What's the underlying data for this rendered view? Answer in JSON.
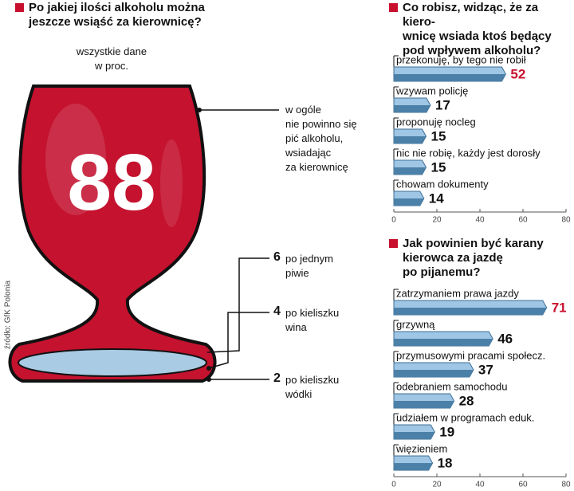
{
  "chart_data": [
    {
      "type": "glass",
      "title": "Po jakiej ilości alkoholu można\njeszcze wsiąść za kierownicę?",
      "subtitle": "wszystkie dane\nw proc.",
      "categories": [
        "w ogóle\nnie powinno się\npić alkoholu,\nwsiadając\nza kierownicę",
        "po jednym\npiwie",
        "po kieliszku\nwina",
        "po kieliszku\nwódki"
      ],
      "values": [
        88,
        6,
        4,
        2
      ],
      "color": "#c4122f",
      "source": "źródło: GfK Polonia"
    },
    {
      "type": "bar",
      "orientation": "horizontal",
      "title": "Co robisz, widząc, że za kiero-\nwnicę wsiada ktoś będący\npod wpływem alkoholu?",
      "categories": [
        "przekonuję, by tego nie robił",
        "wzywam policję",
        "proponuję nocleg",
        "nic nie robię, każdy jest dorosły",
        "chowam dokumenty"
      ],
      "values": [
        52,
        17,
        15,
        15,
        14
      ],
      "xlim": [
        0,
        80
      ],
      "xticks": [
        0,
        20,
        40,
        60,
        80
      ],
      "color": "#9fc6e4",
      "highlight_index": 0,
      "highlight_color": "#c8102e"
    },
    {
      "type": "bar",
      "orientation": "horizontal",
      "title": "Jak powinien być karany\nkierowca za jazdę\npo pijanemu?",
      "categories": [
        "zatrzymaniem prawa jazdy",
        "grzywną",
        "przymusowymi pracami społecz.",
        "odebraniem samochodu",
        "udziałem w programach eduk.",
        "więzieniem"
      ],
      "values": [
        71,
        46,
        37,
        28,
        19,
        18
      ],
      "xlim": [
        0,
        80
      ],
      "xticks": [
        0,
        20,
        40,
        60,
        80
      ],
      "color": "#9fc6e4",
      "highlight_index": 0,
      "highlight_color": "#c8102e"
    }
  ]
}
